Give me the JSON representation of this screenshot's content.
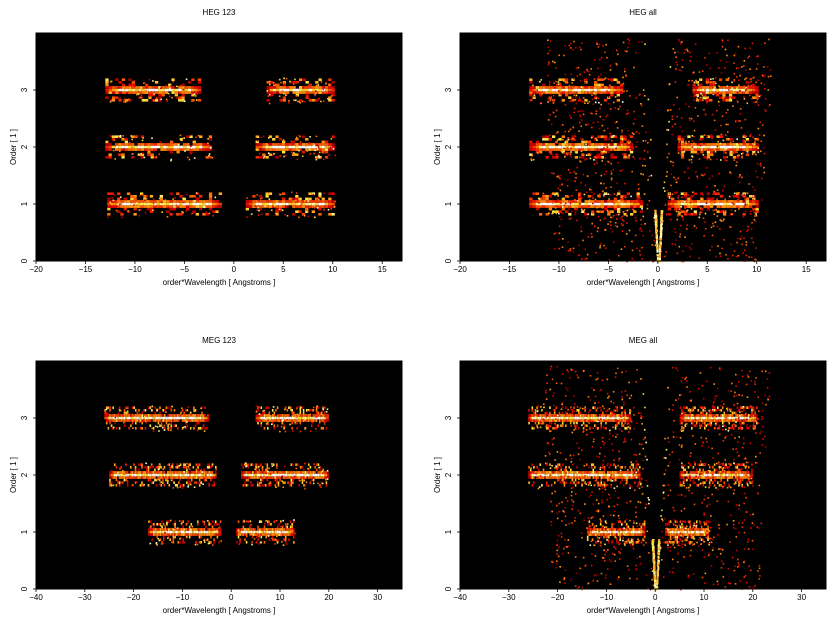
{
  "chart_data": [
    {
      "type": "heatmap",
      "title": "HEG 123",
      "xlabel": "order*Wavelength [ Angstroms ]",
      "ylabel": "Order [ 1 ]",
      "xlim": [
        -20,
        17
      ],
      "ylim": [
        0,
        4
      ],
      "xticks": [
        -20,
        -15,
        -10,
        -5,
        0,
        5,
        10,
        15
      ],
      "yticks": [
        0,
        1,
        2,
        3
      ],
      "colormap": "black-red-yellow-white",
      "background": "#000000",
      "bands": [
        {
          "order": 1,
          "segments": [
            [
              -12.8,
              -1.2
            ],
            [
              1.2,
              10.2
            ]
          ]
        },
        {
          "order": 2,
          "segments": [
            [
              -13.0,
              -2.2
            ],
            [
              2.2,
              10.2
            ]
          ]
        },
        {
          "order": 3,
          "segments": [
            [
              -13.0,
              -3.3
            ],
            [
              3.3,
              10.2
            ]
          ]
        }
      ],
      "zeroth_order_fan": false
    },
    {
      "type": "heatmap",
      "title": "HEG all",
      "xlabel": "order*Wavelength [ Angstroms ]",
      "ylabel": "Order [ 1 ]",
      "xlim": [
        -20,
        17
      ],
      "ylim": [
        0,
        4
      ],
      "xticks": [
        -20,
        -15,
        -10,
        -5,
        0,
        5,
        10,
        15
      ],
      "yticks": [
        0,
        1,
        2,
        3
      ],
      "colormap": "black-red-yellow-white",
      "background": "#000000",
      "bands": [
        {
          "order": 1,
          "segments": [
            [
              -13.0,
              -1.5
            ],
            [
              1.0,
              10.2
            ]
          ]
        },
        {
          "order": 2,
          "segments": [
            [
              -13.0,
              -2.5
            ],
            [
              2.0,
              10.2
            ]
          ]
        },
        {
          "order": 3,
          "segments": [
            [
              -13.0,
              -3.5
            ],
            [
              3.5,
              10.2
            ]
          ]
        }
      ],
      "zeroth_order_fan": true
    },
    {
      "type": "heatmap",
      "title": "MEG 123",
      "xlabel": "order*Wavelength [ Angstroms ]",
      "ylabel": "Order [ 1 ]",
      "xlim": [
        -40,
        35
      ],
      "ylim": [
        0,
        4
      ],
      "xticks": [
        -40,
        -30,
        -20,
        -10,
        0,
        10,
        20,
        30
      ],
      "yticks": [
        0,
        1,
        2,
        3
      ],
      "colormap": "black-red-yellow-white",
      "background": "#000000",
      "bands": [
        {
          "order": 1,
          "segments": [
            [
              -17.0,
              -2.0
            ],
            [
              1.0,
              13.0
            ]
          ]
        },
        {
          "order": 2,
          "segments": [
            [
              -25.0,
              -3.0
            ],
            [
              2.0,
              20.0
            ]
          ]
        },
        {
          "order": 3,
          "segments": [
            [
              -26.0,
              -4.5
            ],
            [
              5.0,
              20.0
            ]
          ]
        }
      ],
      "zeroth_order_fan": false
    },
    {
      "type": "heatmap",
      "title": "MEG all",
      "xlabel": "order*Wavelength [ Angstroms ]",
      "ylabel": "Order [ 1 ]",
      "xlim": [
        -40,
        35
      ],
      "ylim": [
        0,
        4
      ],
      "xticks": [
        -40,
        -30,
        -20,
        -10,
        0,
        10,
        20,
        30
      ],
      "yticks": [
        0,
        1,
        2,
        3
      ],
      "colormap": "black-red-yellow-white",
      "background": "#000000",
      "bands": [
        {
          "order": 1,
          "segments": [
            [
              -14.0,
              -2.0
            ],
            [
              2.0,
              11.0
            ]
          ]
        },
        {
          "order": 2,
          "segments": [
            [
              -26.0,
              -3.0
            ],
            [
              5.0,
              20.0
            ]
          ]
        },
        {
          "order": 3,
          "segments": [
            [
              -26.0,
              -5.0
            ],
            [
              5.0,
              21.0
            ]
          ]
        }
      ],
      "zeroth_order_fan": true
    }
  ]
}
